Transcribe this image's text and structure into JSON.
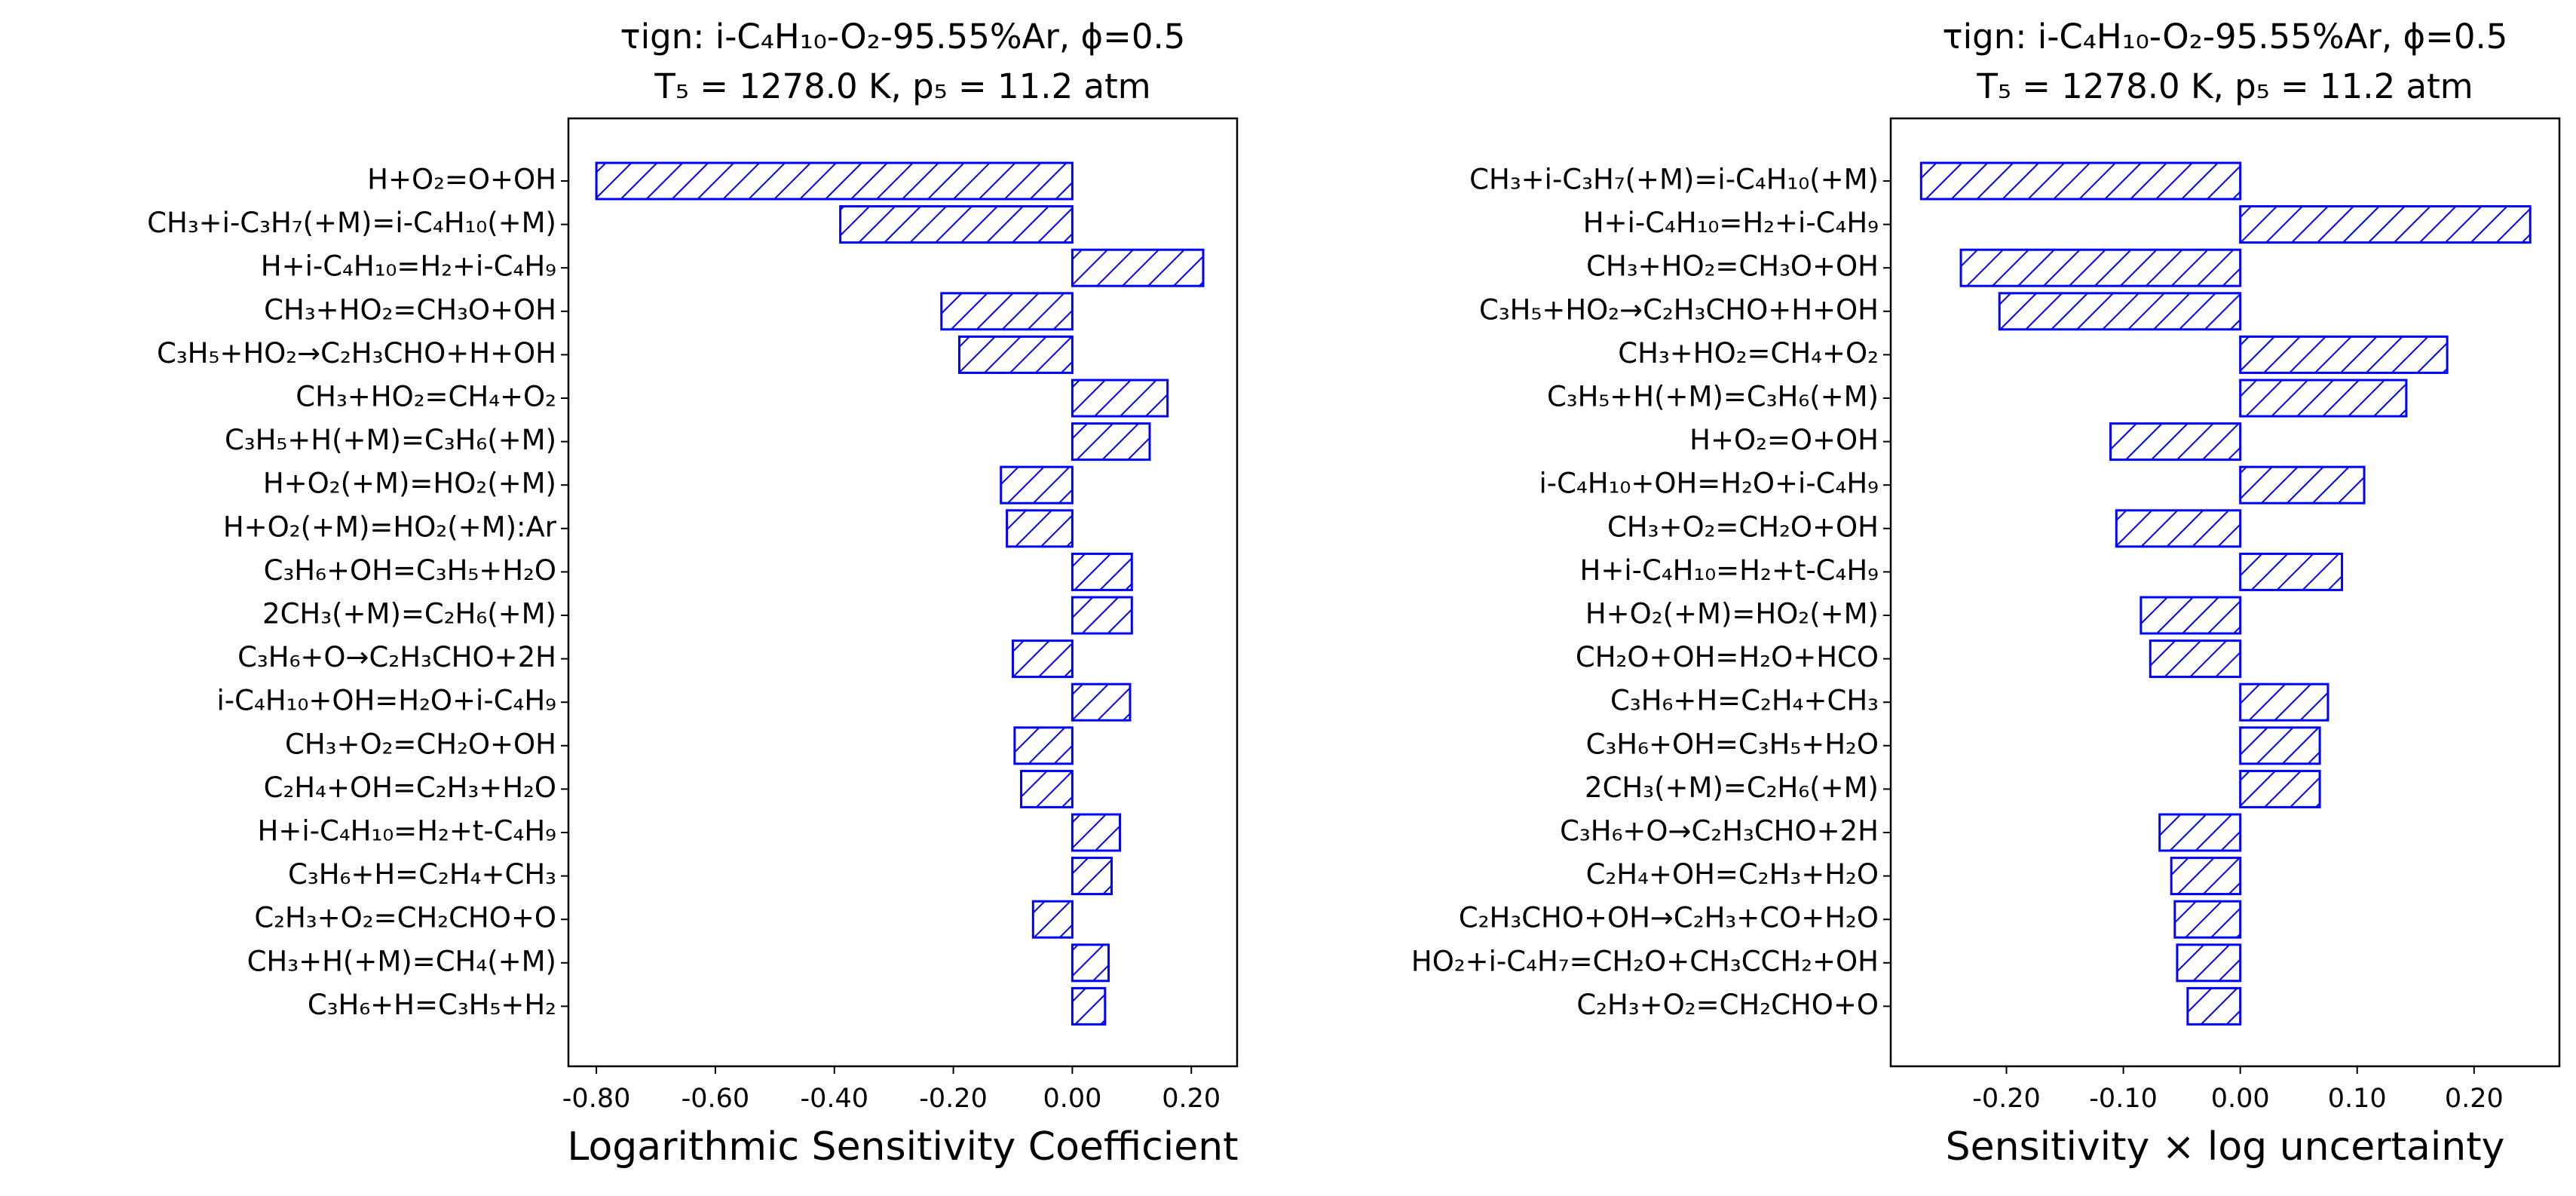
{
  "chart_data": [
    {
      "type": "bar",
      "orientation": "horizontal",
      "title": [
        "τign: i-C₄H₁₀-O₂-95.55%Ar, ϕ=0.5",
        "T₅ = 1278.0 K, p₅ = 11.2 atm"
      ],
      "xlabel": "Logarithmic Sensitivity Coefficient",
      "color": "#0000ff",
      "categories": [
        "H+O₂=O+OH",
        "CH₃+i-C₃H₇(+M)=i-C₄H₁₀(+M)",
        "H+i-C₄H₁₀=H₂+i-C₄H₉",
        "CH₃+HO₂=CH₃O+OH",
        "C₃H₅+HO₂→C₂H₃CHO+H+OH",
        "CH₃+HO₂=CH₄+O₂",
        "C₃H₅+H(+M)=C₃H₆(+M)",
        "H+O₂(+M)=HO₂(+M)",
        "H+O₂(+M)=HO₂(+M):Ar",
        "C₃H₆+OH=C₃H₅+H₂O",
        "2CH₃(+M)=C₂H₆(+M)",
        "C₃H₆+O→C₂H₃CHO+2H",
        "i-C₄H₁₀+OH=H₂O+i-C₄H₉",
        "CH₃+O₂=CH₂O+OH",
        "C₂H₄+OH=C₂H₃+H₂O",
        "H+i-C₄H₁₀=H₂+t-C₄H₉",
        "C₃H₆+H=C₂H₄+CH₃",
        "C₂H₃+O₂=CH₂CHO+O",
        "CH₃+H(+M)=CH₄(+M)",
        "C₃H₆+H=C₃H₅+H₂"
      ],
      "values": [
        -0.8,
        -0.39,
        0.22,
        -0.22,
        -0.19,
        0.16,
        0.13,
        -0.12,
        -0.11,
        0.1,
        0.1,
        -0.1,
        0.097,
        -0.097,
        -0.086,
        0.08,
        0.066,
        -0.066,
        0.061,
        0.055
      ],
      "xlim": [
        -0.847,
        0.277
      ],
      "xticks": [
        {
          "value": -0.8,
          "label": "-0.80"
        },
        {
          "value": -0.6,
          "label": "-0.60"
        },
        {
          "value": -0.4,
          "label": "-0.40"
        },
        {
          "value": -0.2,
          "label": "-0.20"
        },
        {
          "value": 0,
          "label": "0.00"
        },
        {
          "value": 0.2,
          "label": "0.20"
        }
      ]
    },
    {
      "type": "bar",
      "orientation": "horizontal",
      "title": [
        "τign: i-C₄H₁₀-O₂-95.55%Ar, ϕ=0.5",
        "T₅ = 1278.0 K, p₅ = 11.2 atm"
      ],
      "xlabel": "Sensitivity × log uncertainty",
      "color": "#0000ff",
      "categories": [
        "CH₃+i-C₃H₇(+M)=i-C₄H₁₀(+M)",
        "H+i-C₄H₁₀=H₂+i-C₄H₉",
        "CH₃+HO₂=CH₃O+OH",
        "C₃H₅+HO₂→C₂H₃CHO+H+OH",
        "CH₃+HO₂=CH₄+O₂",
        "C₃H₅+H(+M)=C₃H₆(+M)",
        "H+O₂=O+OH",
        "i-C₄H₁₀+OH=H₂O+i-C₄H₉",
        "CH₃+O₂=CH₂O+OH",
        "H+i-C₄H₁₀=H₂+t-C₄H₉",
        "H+O₂(+M)=HO₂(+M)",
        "CH₂O+OH=H₂O+HCO",
        "C₃H₆+H=C₂H₄+CH₃",
        "C₃H₆+OH=C₃H₅+H₂O",
        "2CH₃(+M)=C₂H₆(+M)",
        "C₃H₆+O→C₂H₃CHO+2H",
        "C₂H₄+OH=C₂H₃+H₂O",
        "C₂H₃CHO+OH→C₂H₃+CO+H₂O",
        "HO₂+i-C₄H₇=CH₂O+CH₃CCH₂+OH",
        "C₂H₃+O₂=CH₂CHO+O"
      ],
      "values": [
        -0.273,
        0.248,
        -0.239,
        -0.206,
        0.177,
        0.142,
        -0.111,
        0.106,
        -0.106,
        0.087,
        -0.085,
        -0.077,
        0.075,
        0.068,
        0.068,
        -0.069,
        -0.059,
        -0.056,
        -0.054,
        -0.045
      ],
      "xlim": [
        -0.299,
        0.273
      ],
      "xticks": [
        {
          "value": -0.2,
          "label": "-0.20"
        },
        {
          "value": -0.1,
          "label": "-0.10"
        },
        {
          "value": 0,
          "label": "0.00"
        },
        {
          "value": 0.1,
          "label": "0.10"
        },
        {
          "value": 0.2,
          "label": "0.20"
        }
      ]
    }
  ]
}
